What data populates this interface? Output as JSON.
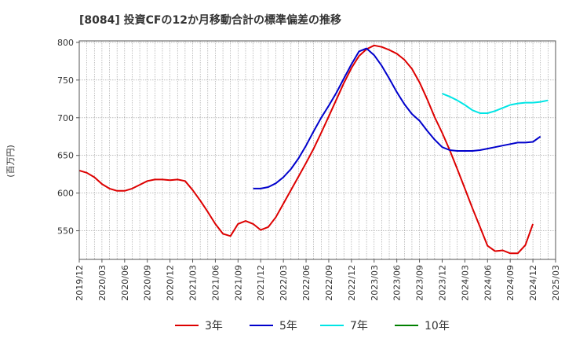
{
  "chart_data": {
    "type": "line",
    "title": "[8084]  投資CFの12か月移動合計の標準偏差の推移",
    "ylabel": "(百万円)",
    "xlabel": "",
    "ylim": [
      512,
      802
    ],
    "yticks": [
      550,
      600,
      650,
      700,
      750,
      800
    ],
    "ytick_labels": [
      "550",
      "600",
      "650",
      "700",
      "750",
      "800"
    ],
    "x_start": "2019-12",
    "x_end": "2025-03",
    "xtick_labels": [
      "2019/12",
      "2020/03",
      "2020/06",
      "2020/09",
      "2020/12",
      "2021/03",
      "2021/06",
      "2021/09",
      "2021/12",
      "2022/03",
      "2022/06",
      "2022/09",
      "2022/12",
      "2023/03",
      "2023/06",
      "2023/09",
      "2023/12",
      "2024/03",
      "2024/06",
      "2024/09",
      "2024/12",
      "2025/03"
    ],
    "grid": true,
    "legend_position": "bottom",
    "series": [
      {
        "name": "3年",
        "color": "#dd0000",
        "start": "2019-12",
        "values": [
          630,
          627,
          621,
          612,
          606,
          603,
          603,
          606,
          611,
          616,
          618,
          618,
          617,
          618,
          616,
          604,
          590,
          575,
          559,
          546,
          543,
          559,
          563,
          559,
          551,
          555,
          568,
          586,
          604,
          622,
          640,
          659,
          680,
          702,
          724,
          746,
          766,
          782,
          791,
          796,
          794,
          790,
          785,
          777,
          765,
          747,
          725,
          701,
          680,
          657,
          632,
          606,
          580,
          555,
          530,
          523,
          524,
          520,
          520,
          531,
          559
        ]
      },
      {
        "name": "5年",
        "color": "#0000cc",
        "start": "2021-11",
        "values": [
          606,
          606,
          608,
          613,
          621,
          632,
          646,
          663,
          682,
          700,
          716,
          733,
          752,
          771,
          788,
          792,
          783,
          769,
          752,
          734,
          718,
          705,
          696,
          683,
          671,
          661,
          657,
          656,
          656,
          656,
          657,
          659,
          661,
          663,
          665,
          667,
          667,
          668,
          675
        ]
      },
      {
        "name": "7年",
        "color": "#00e5e5",
        "start": "2023-12",
        "values": [
          732,
          728,
          723,
          717,
          710,
          706,
          706,
          709,
          713,
          717,
          719,
          720,
          720,
          721,
          723
        ]
      },
      {
        "name": "10年",
        "color": "#008000",
        "start": "2025-03",
        "values": []
      }
    ]
  }
}
